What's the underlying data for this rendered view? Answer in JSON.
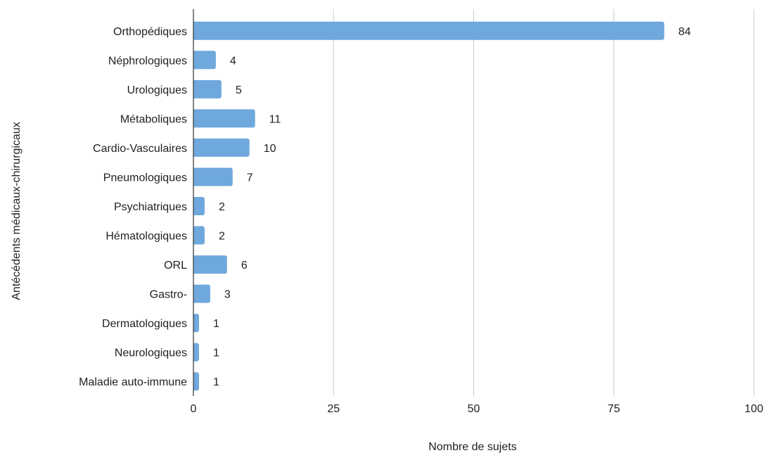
{
  "chart_data": {
    "type": "bar",
    "orientation": "horizontal",
    "categories": [
      "Orthopédiques",
      "Néphrologiques",
      "Urologiques",
      "Métaboliques",
      "Cardio-Vasculaires",
      "Pneumologiques",
      "Psychiatriques",
      "Hématologiques",
      "ORL",
      "Gastro-",
      "Dermatologiques",
      "Neurologiques",
      "Maladie auto-immune"
    ],
    "values": [
      84,
      4,
      5,
      11,
      10,
      7,
      2,
      2,
      6,
      3,
      1,
      1,
      1
    ],
    "xlabel": "Nombre de sujets",
    "ylabel": "Antécédents médicaux-chirurgicaux",
    "xlim": [
      0,
      100
    ],
    "xticks": [
      0,
      25,
      50,
      75,
      100
    ],
    "bar_color": "#6fa8dc",
    "grid": true,
    "data_labels": true
  }
}
